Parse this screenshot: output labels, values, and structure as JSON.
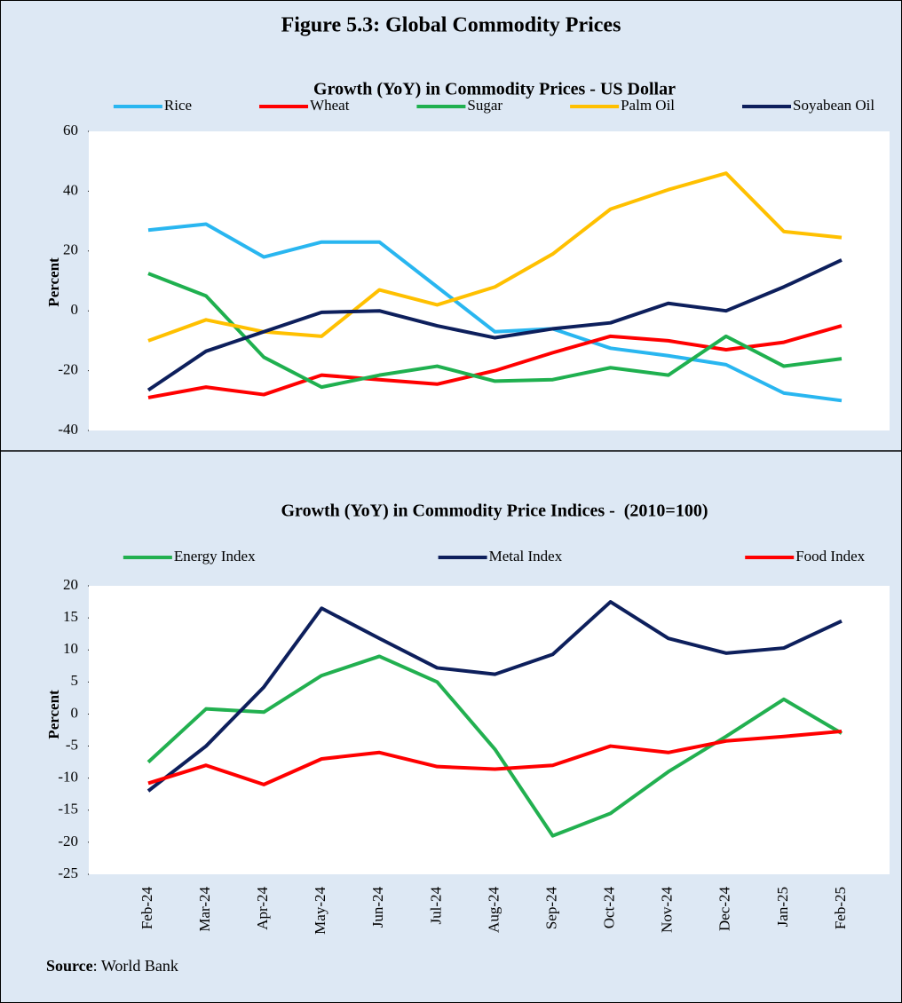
{
  "title": "Figure 5.3: Global Commodity Prices",
  "chart_data": [
    {
      "type": "line",
      "title": "Growth (YoY) in Commodity Prices - US Dollar",
      "ylabel": "Percent",
      "ylim": [
        -40,
        60
      ],
      "yticks": [
        -40,
        -20,
        0,
        20,
        40,
        60
      ],
      "legend": "top",
      "series": [
        {
          "name": "Rice",
          "color": "#29b6f0",
          "values": [
            27,
            29,
            18,
            23,
            23,
            8,
            -7,
            -6,
            -12.5,
            -15,
            -18,
            -27.5,
            -30
          ]
        },
        {
          "name": "Wheat",
          "color": "#ff0000",
          "values": [
            -29,
            -25.5,
            -28,
            -21.5,
            -23,
            -24.5,
            -20,
            -14,
            -8.5,
            -10,
            -13,
            -10.5,
            -5
          ]
        },
        {
          "name": "Sugar",
          "color": "#1fb04f",
          "values": [
            12.5,
            5,
            -15.5,
            -25.5,
            -21.5,
            -18.5,
            -23.5,
            -23,
            -19,
            -21.5,
            -8.5,
            -18.5,
            -16
          ]
        },
        {
          "name": "Palm Oil",
          "color": "#ffc000",
          "values": [
            -10,
            -3,
            -7,
            -8.5,
            7,
            2,
            8,
            19,
            34,
            40.5,
            46,
            26.5,
            24.5
          ]
        },
        {
          "name": "Soyabean Oil",
          "color": "#0d1f5c",
          "values": [
            -26.5,
            -13.5,
            -7,
            -0.5,
            0,
            -5,
            -9,
            -6,
            -4,
            2.5,
            0,
            8,
            17
          ]
        }
      ]
    },
    {
      "type": "line",
      "title": "Growth (YoY) in Commodity Price Indices -  (2010=100)",
      "ylabel": "Percent",
      "categories": [
        "Feb-24",
        "Mar-24",
        "Apr-24",
        "May-24",
        "Jun-24",
        "Jul-24",
        "Aug-24",
        "Sep-24",
        "Oct-24",
        "Nov-24",
        "Dec-24",
        "Jan-25",
        "Feb-25"
      ],
      "ylim": [
        -25,
        20
      ],
      "yticks": [
        -25,
        -20,
        -15,
        -10,
        -5,
        0,
        5,
        10,
        15,
        20
      ],
      "legend": "top",
      "series": [
        {
          "name": "Energy Index",
          "color": "#22b050",
          "values": [
            -7.5,
            0.8,
            0.3,
            6,
            9,
            5,
            -5.5,
            -19,
            -15.5,
            -9,
            -3.5,
            2.3,
            -3
          ]
        },
        {
          "name": "Metal Index",
          "color": "#0d1f5c",
          "values": [
            -12,
            -5,
            4.2,
            16.5,
            11.8,
            7.2,
            6.2,
            9.3,
            17.5,
            11.8,
            9.5,
            10.3,
            14.5
          ]
        },
        {
          "name": "Food Index",
          "color": "#ff0000",
          "values": [
            -10.8,
            -8,
            -11,
            -7,
            -6,
            -8.2,
            -8.6,
            -8,
            -5,
            -6,
            -4.2,
            -3.5,
            -2.7
          ]
        }
      ]
    }
  ],
  "source": {
    "label": "Source",
    "text": ": World Bank"
  }
}
